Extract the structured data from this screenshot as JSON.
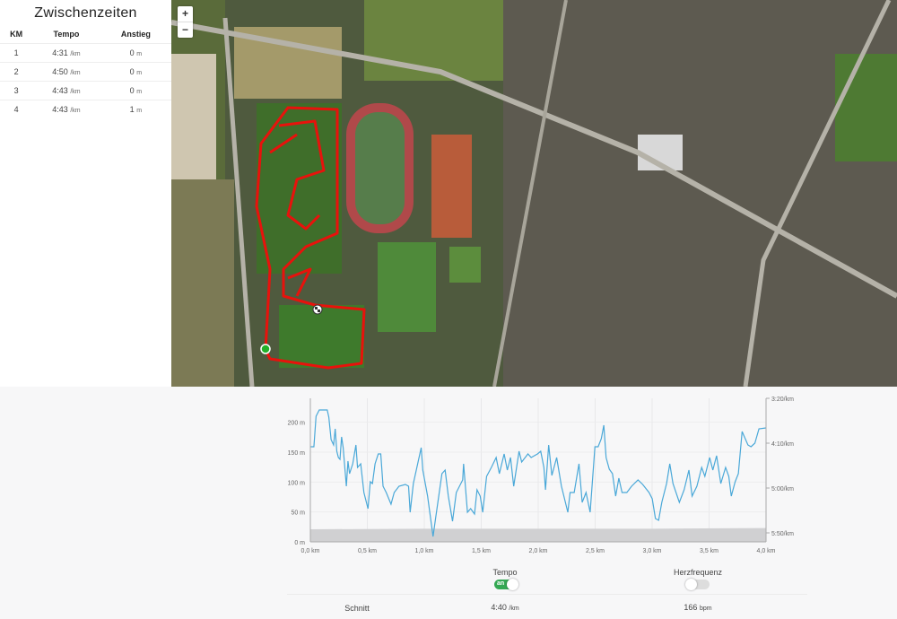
{
  "splits": {
    "title": "Zwischenzeiten",
    "columns": [
      "KM",
      "Tempo",
      "Anstieg"
    ],
    "rows": [
      {
        "km": "1",
        "tempo": "4:31",
        "tempo_unit": "/km",
        "anstieg": "0",
        "anstieg_unit": "m"
      },
      {
        "km": "2",
        "tempo": "4:50",
        "tempo_unit": "/km",
        "anstieg": "0",
        "anstieg_unit": "m"
      },
      {
        "km": "3",
        "tempo": "4:43",
        "tempo_unit": "/km",
        "anstieg": "0",
        "anstieg_unit": "m"
      },
      {
        "km": "4",
        "tempo": "4:43",
        "tempo_unit": "/km",
        "anstieg": "1",
        "anstieg_unit": "m"
      }
    ]
  },
  "map": {
    "zoom_in": "+",
    "zoom_out": "−",
    "route_color": "#e8120c",
    "start_color": "#22b02a",
    "finish_icon": "checkered-flag-icon"
  },
  "chart_data": {
    "type": "line",
    "x_ticks": [
      "0,0 km",
      "0,5 km",
      "1,0 km",
      "1,5 km",
      "2,0 km",
      "2,5 km",
      "3,0 km",
      "3,5 km",
      "4,0 km"
    ],
    "xlim": [
      0,
      4.0
    ],
    "y_left_ticks": [
      "0 m",
      "50 m",
      "100 m",
      "150 m",
      "200 m"
    ],
    "ylim_left": [
      0,
      240
    ],
    "y_right_ticks": [
      "3:20/km",
      "4:10/km",
      "5:00/km",
      "5:50/km"
    ],
    "ylim_right": [
      "3:20",
      "5:50"
    ],
    "grid": true,
    "elevation": {
      "color": "#d0d0d2",
      "x": [
        0,
        1,
        2,
        3,
        4
      ],
      "values": [
        21,
        22,
        22,
        22,
        23
      ]
    },
    "pace": {
      "color": "#4aa8d8",
      "x": [
        0,
        0.031,
        0.05,
        0.078,
        0.148,
        0.162,
        0.182,
        0.204,
        0.218,
        0.232,
        0.246,
        0.26,
        0.274,
        0.288,
        0.316,
        0.33,
        0.344,
        0.372,
        0.4,
        0.414,
        0.442,
        0.47,
        0.506,
        0.526,
        0.545,
        0.568,
        0.596,
        0.618,
        0.638,
        0.666,
        0.708,
        0.736,
        0.778,
        0.834,
        0.862,
        0.876,
        0.904,
        0.973,
        0.987,
        1.029,
        1.077,
        1.099,
        1.127,
        1.155,
        1.183,
        1.211,
        1.248,
        1.281,
        1.337,
        1.345,
        1.379,
        1.407,
        1.441,
        1.463,
        1.491,
        1.513,
        1.547,
        1.589,
        1.631,
        1.659,
        1.701,
        1.729,
        1.757,
        1.785,
        1.832,
        1.855,
        1.91,
        1.938,
        1.994,
        2.022,
        2.05,
        2.064,
        2.092,
        2.12,
        2.162,
        2.204,
        2.26,
        2.28,
        2.316,
        2.358,
        2.386,
        2.42,
        2.456,
        2.498,
        2.526,
        2.554,
        2.576,
        2.596,
        2.624,
        2.652,
        2.68,
        2.708,
        2.736,
        2.778,
        2.82,
        2.876,
        2.917,
        2.973,
        3.001,
        3.029,
        3.057,
        3.085,
        3.127,
        3.155,
        3.183,
        3.239,
        3.281,
        3.323,
        3.351,
        3.393,
        3.435,
        3.463,
        3.505,
        3.533,
        3.566,
        3.603,
        3.645,
        3.673,
        3.695,
        3.729,
        3.757,
        3.79,
        3.841,
        3.868,
        3.902,
        3.938,
        4.0
      ],
      "values": [
        "4:14",
        "4:14",
        "3:40",
        "3:33",
        "3:33",
        "3:41",
        "4:06",
        "4:12",
        "3:54",
        "4:19",
        "4:26",
        "4:28",
        "4:03",
        "4:15",
        "4:58",
        "4:30",
        "4:44",
        "4:33",
        "4:12",
        "4:37",
        "4:33",
        "5:05",
        "5:23",
        "4:53",
        "4:55",
        "4:33",
        "4:22",
        "4:22",
        "4:58",
        "5:05",
        "5:18",
        "5:05",
        "4:58",
        "4:56",
        "4:58",
        "5:27",
        "4:55",
        "4:15",
        "4:40",
        "5:09",
        "5:54",
        "5:34",
        "5:09",
        "4:44",
        "4:40",
        "5:09",
        "5:37",
        "5:05",
        "4:51",
        "4:33",
        "5:27",
        "5:23",
        "5:29",
        "5:02",
        "5:09",
        "5:27",
        "4:47",
        "4:37",
        "4:26",
        "4:44",
        "4:22",
        "4:40",
        "4:26",
        "4:58",
        "4:19",
        "4:31",
        "4:22",
        "4:26",
        "4:22",
        "4:19",
        "4:37",
        "5:02",
        "4:12",
        "4:46",
        "4:26",
        "4:58",
        "5:27",
        "5:05",
        "5:05",
        "4:33",
        "5:16",
        "5:05",
        "5:27",
        "4:14",
        "4:14",
        "4:05",
        "3:50",
        "4:26",
        "4:39",
        "4:44",
        "5:09",
        "4:49",
        "5:05",
        "5:05",
        "4:58",
        "4:51",
        "4:56",
        "5:05",
        "5:12",
        "5:34",
        "5:36",
        "5:16",
        "4:55",
        "4:33",
        "4:55",
        "5:16",
        "5:02",
        "4:40",
        "5:09",
        "4:58",
        "4:37",
        "4:47",
        "4:26",
        "4:40",
        "4:24",
        "4:55",
        "4:37",
        "4:47",
        "5:09",
        "4:53",
        "4:44",
        "3:57",
        "4:12",
        "4:14",
        "4:10",
        "3:54",
        "3:53"
      ]
    }
  },
  "toggles": {
    "tempo": {
      "label": "Tempo",
      "state": "an",
      "on": true,
      "color": "#34a853"
    },
    "herzfrequenz": {
      "label": "Herzfrequenz",
      "on": false
    }
  },
  "summary": {
    "label": "Schnitt",
    "tempo": "4:40",
    "tempo_unit": "/km",
    "hr": "166",
    "hr_unit": "bpm"
  }
}
